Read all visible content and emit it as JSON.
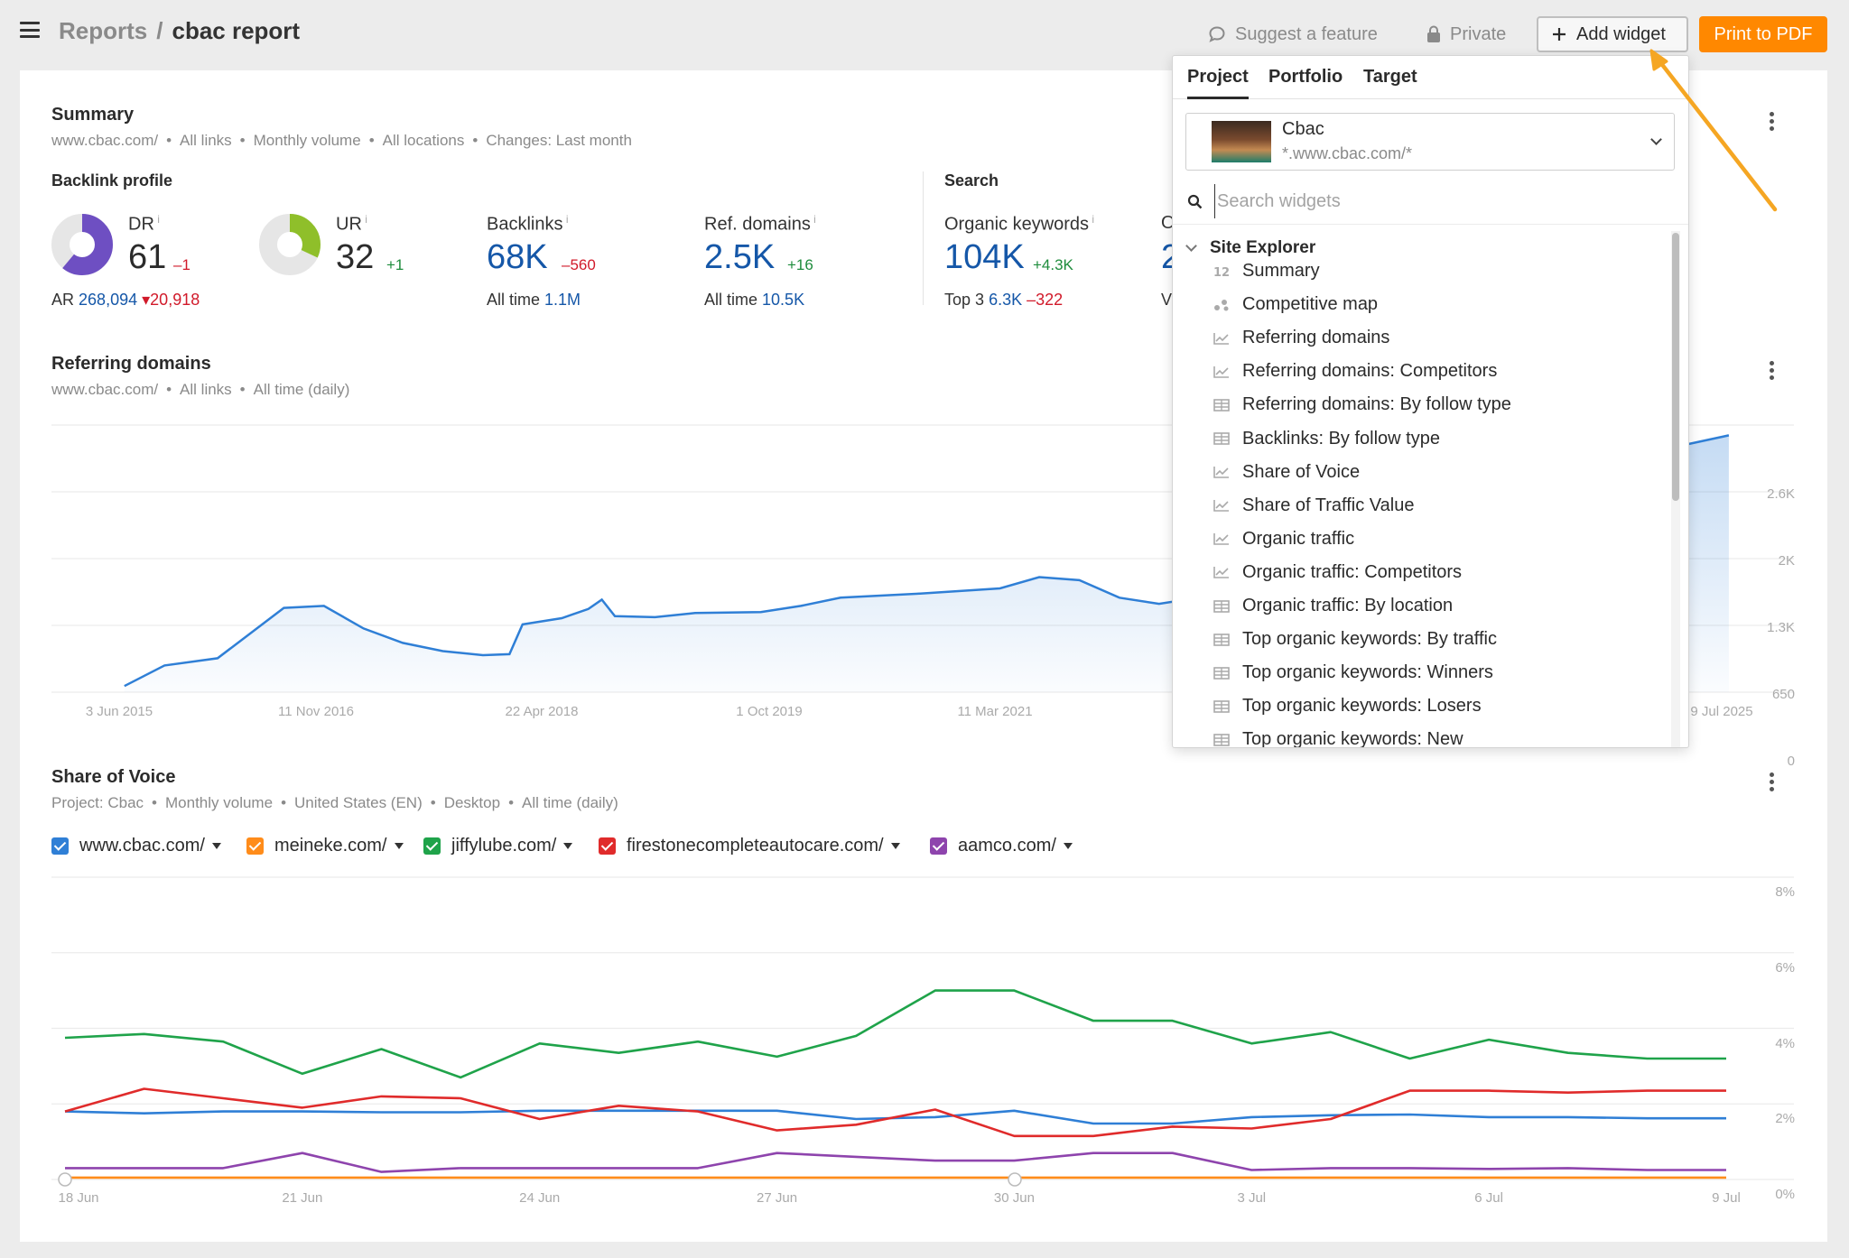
{
  "header": {
    "breadcrumb_root": "Reports",
    "breadcrumb_sep": "/",
    "breadcrumb_current": "cbac report",
    "suggest_label": "Suggest a feature",
    "private_label": "Private",
    "add_widget_label": "Add widget",
    "print_label": "Print to PDF",
    "accent_color": "#ff8800"
  },
  "summary": {
    "title": "Summary",
    "meta": [
      "www.cbac.com/",
      "All links",
      "Monthly volume",
      "All locations",
      "Changes: Last month"
    ],
    "backlink_profile_title": "Backlink profile",
    "search_title": "Search",
    "dr": {
      "label": "DR",
      "value": "61",
      "delta": "–1",
      "gauge": 0.61,
      "color": "#6e4fc2"
    },
    "ur": {
      "label": "UR",
      "value": "32",
      "delta": "+1",
      "gauge": 0.32,
      "color": "#8fbf2a"
    },
    "ar": {
      "label": "AR",
      "value": "268,094",
      "delta": "20,918"
    },
    "backlinks": {
      "label": "Backlinks",
      "value": "68K",
      "delta": "–560",
      "alltime_label": "All time",
      "alltime": "1.1M"
    },
    "ref_domains": {
      "label": "Ref. domains",
      "value": "2.5K",
      "delta": "+16",
      "alltime_label": "All time",
      "alltime": "10.5K"
    },
    "organic_keywords": {
      "label": "Organic keywords",
      "value": "104K",
      "delta": "+4.3K",
      "top3_label": "Top 3",
      "top3": "6.3K",
      "top3_delta": "–322"
    },
    "partial_metric_label": "O",
    "partial_metric_value": "2",
    "partial_metric_sub": "V"
  },
  "referring_domains": {
    "title": "Referring domains",
    "meta": [
      "www.cbac.com/",
      "All links",
      "All time (daily)"
    ],
    "chart_data": {
      "type": "area",
      "x_ticks": [
        "3 Jun 2015",
        "11 Nov 2016",
        "22 Apr 2018",
        "1 Oct 2019",
        "11 Mar 2021",
        "9 Jul 2025"
      ],
      "y_ticks": [
        "2.6K",
        "2K",
        "1.3K",
        "650",
        "0"
      ],
      "ylim": [
        0,
        2600
      ],
      "series_color": "#2f7fd6",
      "points": [
        [
          "2015-06",
          60
        ],
        [
          "2015-09",
          260
        ],
        [
          "2016-01",
          330
        ],
        [
          "2016-06",
          820
        ],
        [
          "2016-09",
          840
        ],
        [
          "2016-12",
          620
        ],
        [
          "2017-03",
          480
        ],
        [
          "2017-06",
          400
        ],
        [
          "2017-09",
          360
        ],
        [
          "2017-11",
          370
        ],
        [
          "2017-12",
          660
        ],
        [
          "2018-03",
          720
        ],
        [
          "2018-05",
          810
        ],
        [
          "2018-06",
          900
        ],
        [
          "2018-07",
          740
        ],
        [
          "2018-10",
          730
        ],
        [
          "2019-01",
          770
        ],
        [
          "2019-06",
          780
        ],
        [
          "2019-09",
          840
        ],
        [
          "2019-12",
          920
        ],
        [
          "2020-06",
          960
        ],
        [
          "2020-12",
          1010
        ],
        [
          "2021-03",
          1120
        ],
        [
          "2021-06",
          1090
        ],
        [
          "2021-09",
          920
        ],
        [
          "2021-12",
          860
        ],
        [
          "2022-03",
          920
        ],
        [
          "2022-06",
          1020
        ],
        [
          "2022-09",
          1140
        ],
        [
          "2022-12",
          1200
        ],
        [
          "2024-01",
          2000
        ],
        [
          "2025-07",
          2500
        ]
      ]
    }
  },
  "share_of_voice": {
    "title": "Share of Voice",
    "meta": [
      "Project: Cbac",
      "Monthly volume",
      "United States (EN)",
      "Desktop",
      "All time (daily)"
    ],
    "legend": [
      {
        "label": "www.cbac.com/",
        "color": "#2f7fd6"
      },
      {
        "label": "meineke.com/",
        "color": "#ff8c1a"
      },
      {
        "label": "jiffylube.com/",
        "color": "#1fa34a"
      },
      {
        "label": "firestonecompleteautocare.com/",
        "color": "#e02b2b"
      },
      {
        "label": "aamco.com/",
        "color": "#8e44ad"
      }
    ],
    "chart_data": {
      "type": "line",
      "x_ticks": [
        "18 Jun",
        "21 Jun",
        "24 Jun",
        "27 Jun",
        "30 Jun",
        "3 Jul",
        "6 Jul",
        "9 Jul"
      ],
      "y_ticks": [
        "8%",
        "6%",
        "4%",
        "2%",
        "0%"
      ],
      "ylim": [
        0,
        8
      ],
      "x": [
        "18 Jun",
        "19 Jun",
        "20 Jun",
        "21 Jun",
        "22 Jun",
        "23 Jun",
        "24 Jun",
        "25 Jun",
        "26 Jun",
        "27 Jun",
        "28 Jun",
        "29 Jun",
        "30 Jun",
        "1 Jul",
        "2 Jul",
        "3 Jul",
        "4 Jul",
        "5 Jul",
        "6 Jul",
        "7 Jul",
        "8 Jul",
        "9 Jul"
      ],
      "series": [
        {
          "name": "www.cbac.com/",
          "color": "#2f7fd6",
          "values": [
            1.8,
            1.75,
            1.8,
            1.8,
            1.78,
            1.78,
            1.82,
            1.82,
            1.82,
            1.82,
            1.6,
            1.65,
            1.82,
            1.48,
            1.48,
            1.65,
            1.7,
            1.72,
            1.65,
            1.65,
            1.62,
            1.62
          ]
        },
        {
          "name": "meineke.com/",
          "color": "#ff8c1a",
          "values": [
            0.05,
            0.05,
            0.05,
            0.05,
            0.05,
            0.05,
            0.05,
            0.05,
            0.05,
            0.05,
            0.05,
            0.05,
            0.05,
            0.05,
            0.05,
            0.05,
            0.05,
            0.05,
            0.05,
            0.05,
            0.05,
            0.05
          ]
        },
        {
          "name": "jiffylube.com/",
          "color": "#1fa34a",
          "values": [
            3.75,
            3.85,
            3.65,
            2.8,
            3.45,
            2.7,
            3.6,
            3.35,
            3.65,
            3.25,
            3.8,
            5.0,
            5.0,
            4.2,
            4.2,
            3.6,
            3.9,
            3.2,
            3.7,
            3.35,
            3.2,
            3.2
          ]
        },
        {
          "name": "firestonecompleteautocare.com/",
          "color": "#e02b2b",
          "values": [
            1.8,
            2.4,
            2.15,
            1.9,
            2.2,
            2.15,
            1.6,
            1.95,
            1.8,
            1.3,
            1.45,
            1.85,
            1.15,
            1.15,
            1.4,
            1.35,
            1.6,
            2.35,
            2.35,
            2.3,
            2.35,
            2.35
          ]
        },
        {
          "name": "aamco.com/",
          "color": "#8e44ad",
          "values": [
            0.3,
            0.3,
            0.3,
            0.7,
            0.2,
            0.3,
            0.3,
            0.3,
            0.3,
            0.7,
            0.6,
            0.5,
            0.5,
            0.7,
            0.7,
            0.25,
            0.3,
            0.3,
            0.28,
            0.3,
            0.25,
            0.25
          ]
        }
      ]
    }
  },
  "widget_panel": {
    "tabs": [
      "Project",
      "Portfolio",
      "Target"
    ],
    "project_name": "Cbac",
    "project_url": "*.www.cbac.com/*",
    "search_placeholder": "Search widgets",
    "group_label": "Site Explorer",
    "items": [
      {
        "label": "Summary",
        "icon": "number-icon"
      },
      {
        "label": "Competitive map",
        "icon": "dots-icon"
      },
      {
        "label": "Referring domains",
        "icon": "line-chart-icon"
      },
      {
        "label": "Referring domains: Competitors",
        "icon": "line-chart-icon"
      },
      {
        "label": "Referring domains: By follow type",
        "icon": "table-icon"
      },
      {
        "label": "Backlinks: By follow type",
        "icon": "table-icon"
      },
      {
        "label": "Share of Voice",
        "icon": "line-chart-icon"
      },
      {
        "label": "Share of Traffic Value",
        "icon": "line-chart-icon"
      },
      {
        "label": "Organic traffic",
        "icon": "line-chart-icon"
      },
      {
        "label": "Organic traffic: Competitors",
        "icon": "line-chart-icon"
      },
      {
        "label": "Organic traffic: By location",
        "icon": "table-icon"
      },
      {
        "label": "Top organic keywords: By traffic",
        "icon": "table-icon"
      },
      {
        "label": "Top organic keywords: Winners",
        "icon": "table-icon"
      },
      {
        "label": "Top organic keywords: Losers",
        "icon": "table-icon"
      },
      {
        "label": "Top organic keywords: New",
        "icon": "table-icon"
      }
    ]
  }
}
